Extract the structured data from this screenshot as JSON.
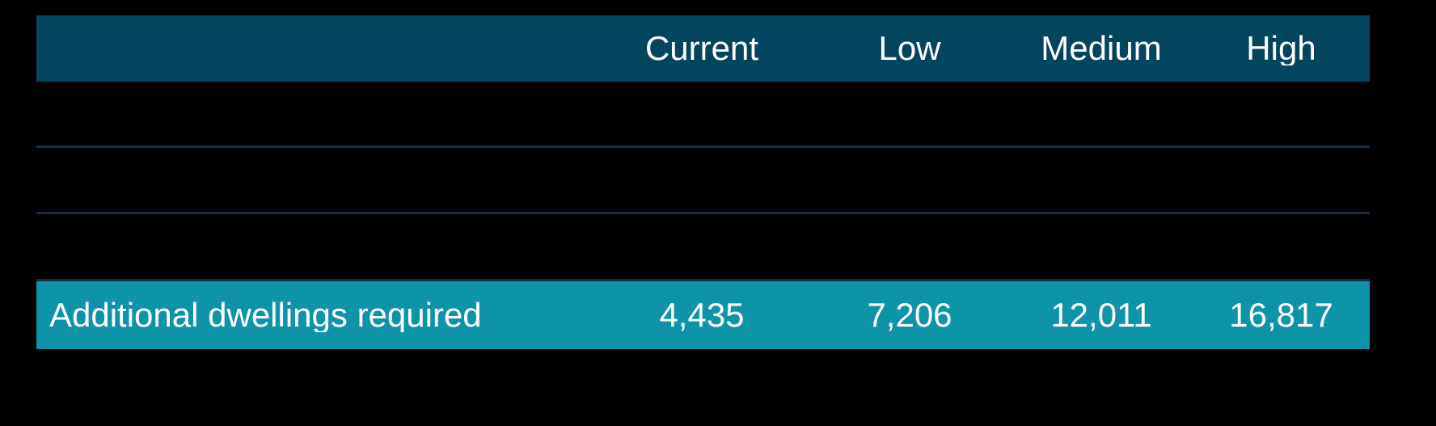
{
  "table": {
    "headers": [
      "Current",
      "Low",
      "Medium",
      "High"
    ],
    "empty_row_count": 3,
    "highlight_row": {
      "label": "Additional dwellings required",
      "values": [
        "4,435",
        "7,206",
        "12,011",
        "16,817"
      ]
    },
    "colors": {
      "background": "#000000",
      "header_bg": "#03455f",
      "highlight_bg": "#0e93a9",
      "divider": "#16304a",
      "text": "#ffffff"
    }
  },
  "chart_data": {
    "type": "table",
    "columns": [
      "",
      "Current",
      "Low",
      "Medium",
      "High"
    ],
    "rows": [
      {
        "label": "",
        "values": [
          "",
          "",
          "",
          ""
        ],
        "highlighted": false
      },
      {
        "label": "",
        "values": [
          "",
          "",
          "",
          ""
        ],
        "highlighted": false
      },
      {
        "label": "",
        "values": [
          "",
          "",
          "",
          ""
        ],
        "highlighted": false
      },
      {
        "label": "Additional dwellings required",
        "values": [
          4435,
          7206,
          12011,
          16817
        ],
        "highlighted": true
      }
    ],
    "title": "",
    "legend": [],
    "layout": "header row dark blue; three blank body rows separated by thin navy divider lines; final row highlighted teal; black page background"
  }
}
